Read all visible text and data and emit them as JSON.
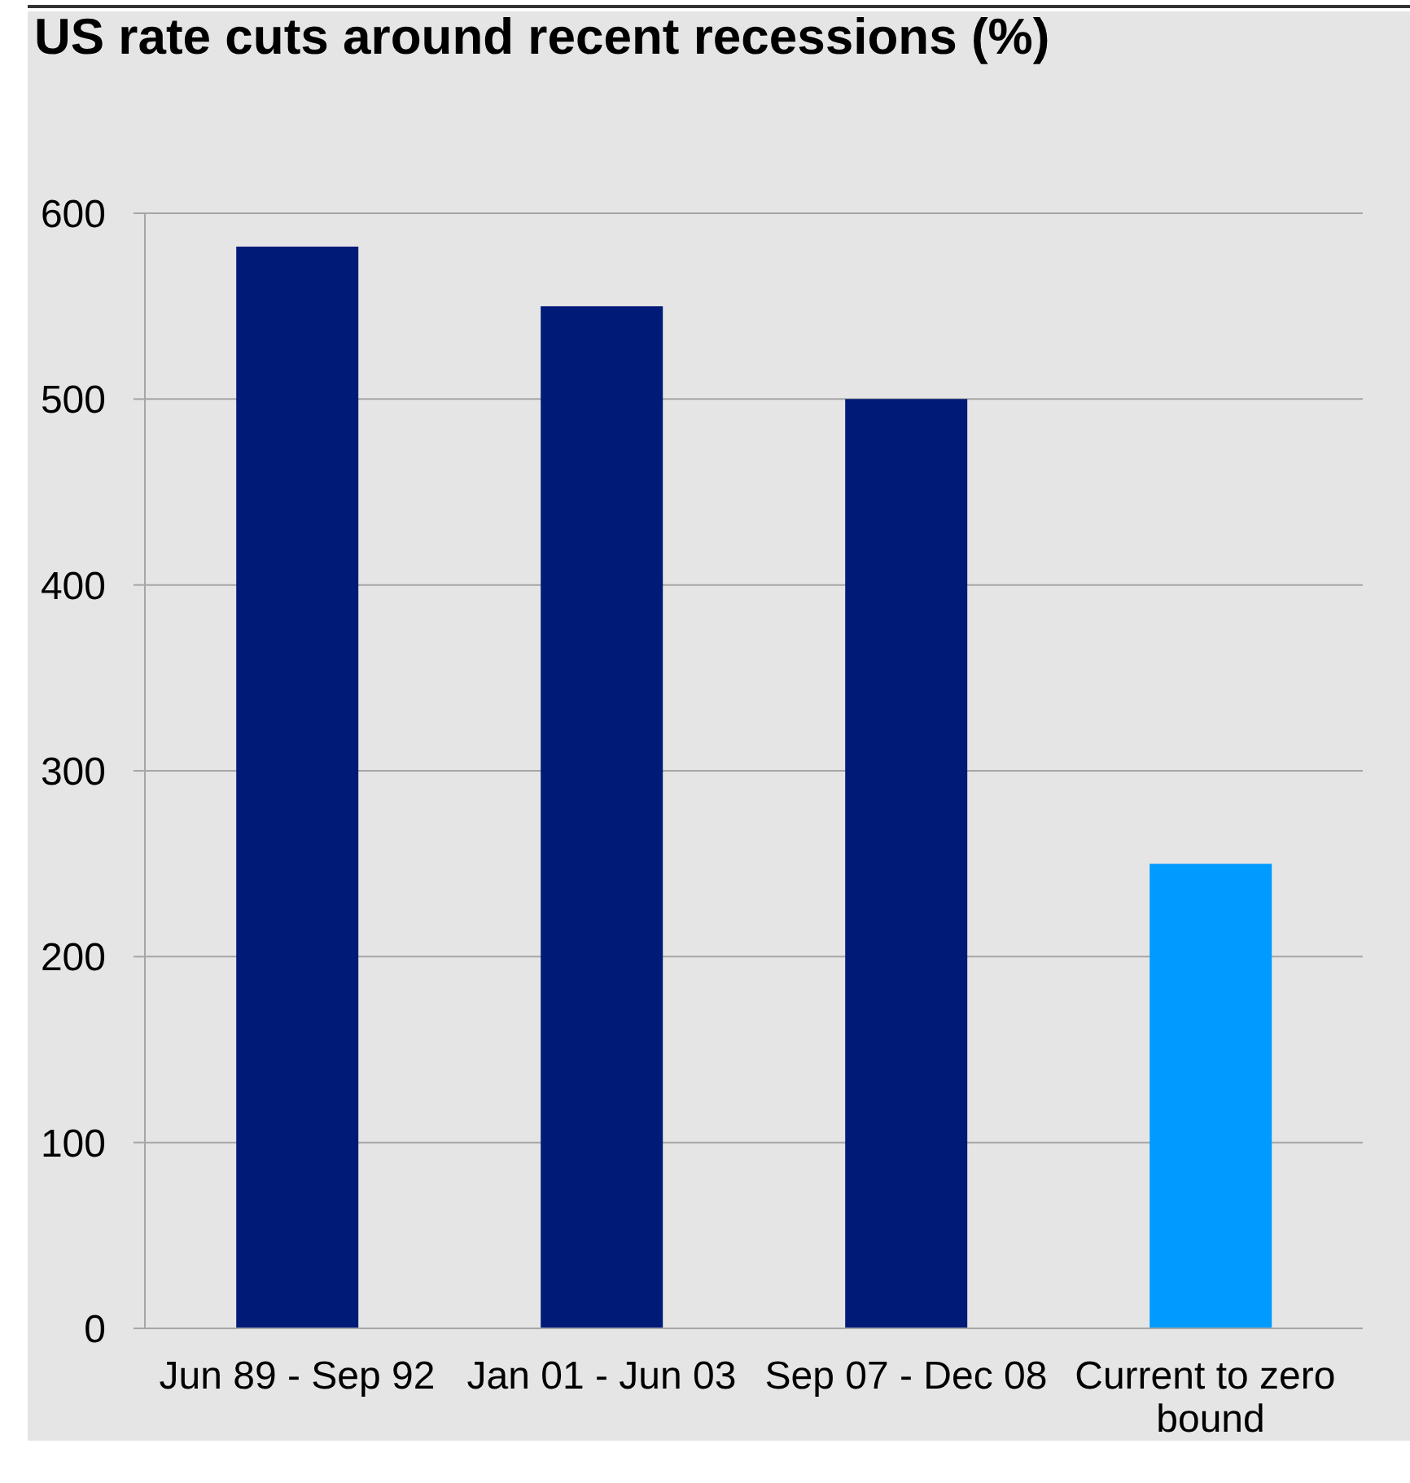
{
  "chart_data": {
    "type": "bar",
    "title": "US rate cuts around recent recessions (%)",
    "categories": [
      "Jun 89 - Sep 92",
      "Jan 01 - Jun 03",
      "Sep 07 - Dec 08",
      "Current to zero bound"
    ],
    "values": [
      582,
      550,
      500,
      250
    ],
    "colors": [
      "#001a78",
      "#001a78",
      "#001a78",
      "#009bff"
    ],
    "ylim": [
      0,
      600
    ],
    "yticks": [
      0,
      100,
      200,
      300,
      400,
      500,
      600
    ],
    "grid": "y"
  }
}
